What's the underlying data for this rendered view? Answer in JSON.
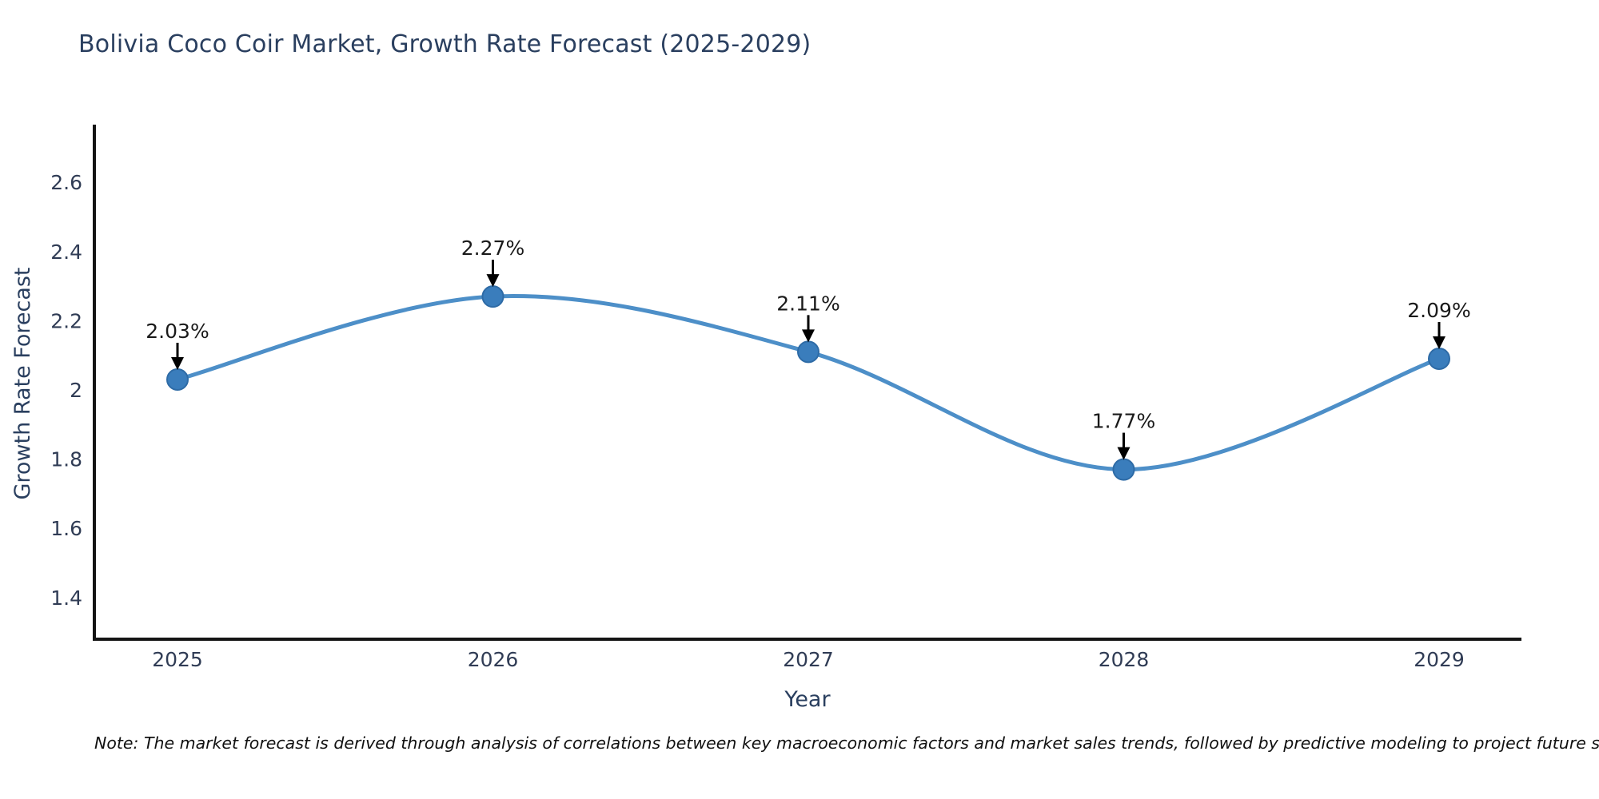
{
  "title": "Bolivia Coco Coir Market, Growth Rate Forecast (2025-2029)",
  "note": "Note: The market forecast is derived through analysis of correlations between key macroeconomic factors and market sales trends, followed by predictive modeling to project future sales",
  "chart_data": {
    "type": "line",
    "line_shape": "spline",
    "x": [
      "2025",
      "2026",
      "2027",
      "2028",
      "2029"
    ],
    "series": [
      {
        "name": "Growth Rate Forecast",
        "values": [
          2.03,
          2.27,
          2.11,
          1.77,
          2.09
        ]
      }
    ],
    "point_labels": [
      "2.03%",
      "2.27%",
      "2.11%",
      "1.77%",
      "2.09%"
    ],
    "title": "Bolivia Coco Coir Market, Growth Rate Forecast (2025-2029)",
    "xlabel": "Year",
    "ylabel": "Growth Rate Forecast",
    "yticks": [
      1.4,
      1.6,
      1.8,
      2,
      2.2,
      2.4,
      2.6
    ],
    "ylim": [
      1.28,
      2.77
    ],
    "grid": false,
    "legend": "none",
    "colors": {
      "line": "#4d8fc8",
      "marker_fill": "#3a7dbc",
      "marker_border": "#2e6ba6",
      "axis": "#141414",
      "annotation_text": "#1a1a1a",
      "annotation_arrow": "#000000",
      "heading_text": "#2a3f5f",
      "tick_text": "#303c55"
    }
  }
}
